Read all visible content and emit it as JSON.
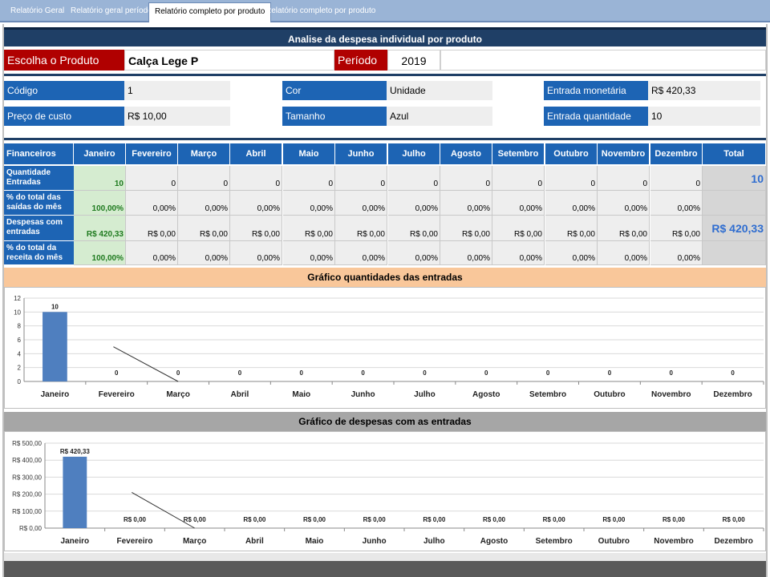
{
  "tabs": [
    {
      "label": "Relatório Geral",
      "active": false
    },
    {
      "label": "Relatório geral período",
      "active": false
    },
    {
      "label": "Relatório completo por produto",
      "active": true
    },
    {
      "label": "Relatório completo por produto",
      "active": false
    }
  ],
  "title": "Analise da despesa individual por produto",
  "selector": {
    "product_label": "Escolha o Produto",
    "product_value": "Calça Lege P",
    "period_label": "Período",
    "period_value": "2019"
  },
  "info": {
    "codigo_label": "Código",
    "codigo_value": "1",
    "preco_label": "Preço de custo",
    "preco_value": "R$ 10,00",
    "cor_label": "Cor",
    "cor_value": "Unidade",
    "tamanho_label": "Tamanho",
    "tamanho_value": "Azul",
    "entrada_monetaria_label": "Entrada monetária",
    "entrada_monetaria_value": "R$ 420,33",
    "entrada_quantidade_label": "Entrada quantidade",
    "entrada_quantidade_value": "10"
  },
  "table": {
    "corner": "Financeiros",
    "months": [
      "Janeiro",
      "Fevereiro",
      "Março",
      "Abril",
      "Maio",
      "Junho",
      "Julho",
      "Agosto",
      "Setembro",
      "Outubro",
      "Novembro",
      "Dezembro"
    ],
    "total_header": "Total",
    "rows": [
      {
        "label": "Quantidade Entradas",
        "values": [
          "10",
          "0",
          "0",
          "0",
          "0",
          "0",
          "0",
          "0",
          "0",
          "0",
          "0",
          "0"
        ],
        "total": "10"
      },
      {
        "label": "% do total das saídas do mês",
        "values": [
          "100,00%",
          "0,00%",
          "0,00%",
          "0,00%",
          "0,00%",
          "0,00%",
          "0,00%",
          "0,00%",
          "0,00%",
          "0,00%",
          "0,00%",
          "0,00%"
        ],
        "total": ""
      },
      {
        "label": "Despesas com entradas",
        "values": [
          "R$ 420,33",
          "R$ 0,00",
          "R$ 0,00",
          "R$ 0,00",
          "R$ 0,00",
          "R$ 0,00",
          "R$ 0,00",
          "R$ 0,00",
          "R$ 0,00",
          "R$ 0,00",
          "R$ 0,00",
          "R$ 0,00"
        ],
        "total": "R$ 420,33"
      },
      {
        "label": "% do total da receita do mês",
        "values": [
          "100,00%",
          "0,00%",
          "0,00%",
          "0,00%",
          "0,00%",
          "0,00%",
          "0,00%",
          "0,00%",
          "0,00%",
          "0,00%",
          "0,00%",
          "0,00%"
        ],
        "total": ""
      }
    ]
  },
  "colors": {
    "header_blue": "#1d64b4",
    "dark_navy": "#1f3f66",
    "red_label": "#b00000",
    "green_cell": "#d5ecd0",
    "chart1_header": "#f9c79a",
    "chart2_header": "#a6a6a6",
    "bar": "#4f7fbf"
  },
  "chart_data": [
    {
      "type": "bar",
      "title": "Gráfico quantidades das entradas",
      "categories": [
        "Janeiro",
        "Fevereiro",
        "Março",
        "Abril",
        "Maio",
        "Junho",
        "Julho",
        "Agosto",
        "Setembro",
        "Outubro",
        "Novembro",
        "Dezembro"
      ],
      "values": [
        10,
        0,
        0,
        0,
        0,
        0,
        0,
        0,
        0,
        0,
        0,
        0
      ],
      "data_labels": [
        "10",
        "0",
        "0",
        "0",
        "0",
        "0",
        "0",
        "0",
        "0",
        "0",
        "0",
        "0"
      ],
      "yticks": [
        "0",
        "2",
        "4",
        "6",
        "8",
        "10",
        "12"
      ],
      "ylim": [
        0,
        12
      ],
      "grid": true,
      "legend": "none",
      "trendline": {
        "from_category": "Fevereiro",
        "from_value": 5,
        "to_category": "Março",
        "to_value": 0
      }
    },
    {
      "type": "bar",
      "title": "Gráfico de despesas com as entradas",
      "categories": [
        "Janeiro",
        "Fevereiro",
        "Março",
        "Abril",
        "Maio",
        "Junho",
        "Julho",
        "Agosto",
        "Setembro",
        "Outubro",
        "Novembro",
        "Dezembro"
      ],
      "values": [
        420.33,
        0,
        0,
        0,
        0,
        0,
        0,
        0,
        0,
        0,
        0,
        0
      ],
      "data_labels": [
        "R$ 420,33",
        "R$ 0,00",
        "R$ 0,00",
        "R$ 0,00",
        "R$ 0,00",
        "R$ 0,00",
        "R$ 0,00",
        "R$ 0,00",
        "R$ 0,00",
        "R$ 0,00",
        "R$ 0,00",
        "R$ 0,00"
      ],
      "yticks": [
        "R$ 0,00",
        "R$ 100,00",
        "R$ 200,00",
        "R$ 300,00",
        "R$ 400,00",
        "R$ 500,00"
      ],
      "ylim": [
        0,
        500
      ],
      "grid": true,
      "legend": "none",
      "trendline": {
        "from_category": "Fevereiro",
        "from_value": 210,
        "to_category": "Março",
        "to_value": 0
      }
    }
  ]
}
